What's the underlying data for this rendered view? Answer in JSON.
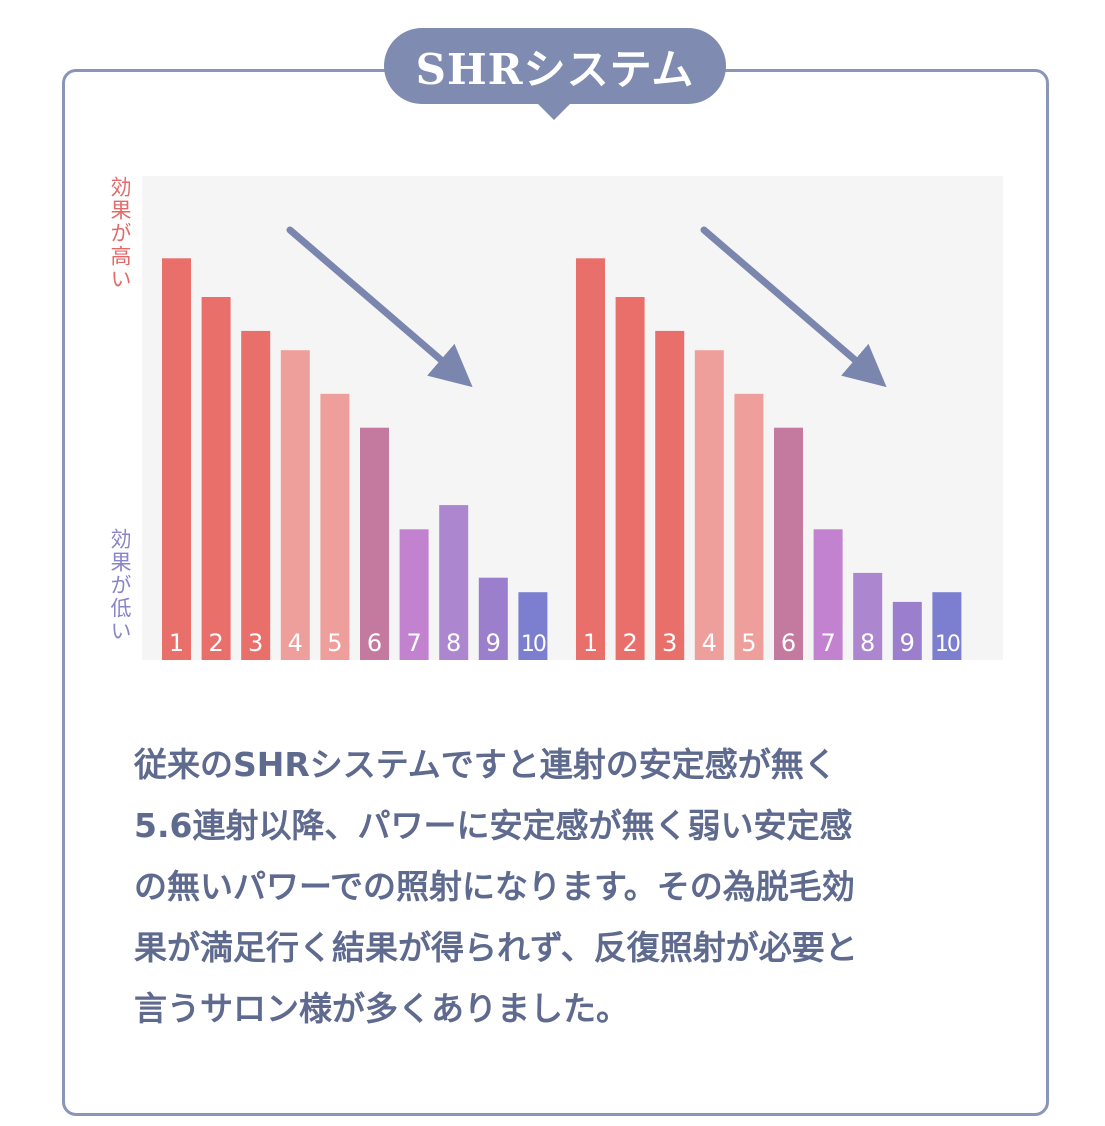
{
  "title": "SHRシステム",
  "y_axis": {
    "high_label": "効果が高い",
    "low_label": "効果が低い"
  },
  "colors": {
    "frame": "#8a95b8",
    "badge": "#7f8bb0",
    "text": "#5f6a8f",
    "arrow": "#7a86ad",
    "high_label": "#e26a6a",
    "low_label": "#8a84c9"
  },
  "chart_data": [
    {
      "type": "bar",
      "title": "",
      "categories": [
        "1",
        "2",
        "3",
        "4",
        "5",
        "6",
        "7",
        "8",
        "9",
        "10"
      ],
      "values": [
        83,
        75,
        68,
        64,
        55,
        48,
        27,
        32,
        17,
        14
      ],
      "bar_colors": [
        "#e96f6b",
        "#e96f6b",
        "#e96f6b",
        "#ef9f9b",
        "#ef9f9b",
        "#c47a9e",
        "#c282d0",
        "#ac86ce",
        "#9b7fcd",
        "#7c7fcf"
      ],
      "ylim": [
        0,
        100
      ],
      "trend": "decreasing"
    },
    {
      "type": "bar",
      "title": "",
      "categories": [
        "1",
        "2",
        "3",
        "4",
        "5",
        "6",
        "7",
        "8",
        "9",
        "10"
      ],
      "values": [
        83,
        75,
        68,
        64,
        55,
        48,
        27,
        18,
        12,
        14
      ],
      "bar_colors": [
        "#e96f6b",
        "#e96f6b",
        "#e96f6b",
        "#ef9f9b",
        "#ef9f9b",
        "#c47a9e",
        "#c282d0",
        "#ac86ce",
        "#9b7fcd",
        "#7c7fcf"
      ],
      "ylim": [
        0,
        100
      ],
      "trend": "decreasing"
    }
  ],
  "description": "従来のSHRシステムですと連射の安定感が無く\n5.6連射以降、パワーに安定感が無く弱い安定感\nの無いパワーでの照射になります。その為脱毛効\n果が満足行く結果が得られず、反復照射が必要と\n言うサロン様が多くありました。"
}
